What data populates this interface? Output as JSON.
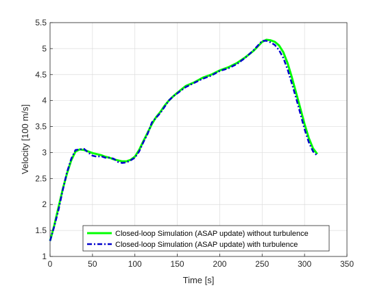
{
  "chart_data": {
    "type": "line",
    "xlabel": "Time [s]",
    "ylabel": "Velocity [100 m/s]",
    "xlim": [
      0,
      350
    ],
    "ylim": [
      1,
      5.5
    ],
    "xticks": [
      0,
      50,
      100,
      150,
      200,
      250,
      300,
      350
    ],
    "yticks": [
      1,
      1.5,
      2,
      2.5,
      3,
      3.5,
      4,
      4.5,
      5,
      5.5
    ],
    "grid": true,
    "legend_position": "bottom-center",
    "series": [
      {
        "name": "Closed-loop Simulation (ASAP update) without turbulence",
        "color": "#00ff00",
        "style": "solid",
        "x": [
          0,
          5,
          10,
          15,
          20,
          25,
          30,
          35,
          40,
          45,
          50,
          55,
          60,
          65,
          70,
          75,
          80,
          85,
          90,
          95,
          100,
          105,
          110,
          115,
          120,
          125,
          130,
          135,
          140,
          145,
          150,
          160,
          170,
          180,
          190,
          200,
          210,
          220,
          230,
          240,
          250,
          255,
          260,
          265,
          270,
          275,
          280,
          285,
          290,
          295,
          300,
          305,
          310,
          315
        ],
        "y": [
          1.3,
          1.6,
          1.95,
          2.3,
          2.6,
          2.85,
          3.02,
          3.06,
          3.05,
          3.02,
          2.99,
          2.97,
          2.95,
          2.92,
          2.9,
          2.87,
          2.85,
          2.83,
          2.83,
          2.86,
          2.92,
          3.05,
          3.22,
          3.38,
          3.55,
          3.68,
          3.78,
          3.9,
          4.0,
          4.08,
          4.15,
          4.28,
          4.35,
          4.44,
          4.5,
          4.58,
          4.64,
          4.72,
          4.83,
          4.96,
          5.13,
          5.17,
          5.16,
          5.13,
          5.06,
          4.93,
          4.72,
          4.45,
          4.15,
          3.85,
          3.55,
          3.28,
          3.08,
          2.97
        ]
      },
      {
        "name": "Closed-loop Simulation (ASAP update) with turbulence",
        "color": "#0000cd",
        "style": "dashdot",
        "x": [
          0,
          5,
          10,
          15,
          20,
          25,
          30,
          35,
          40,
          45,
          50,
          55,
          60,
          65,
          70,
          75,
          80,
          85,
          90,
          95,
          100,
          105,
          110,
          115,
          120,
          125,
          130,
          135,
          140,
          145,
          150,
          160,
          170,
          180,
          190,
          200,
          210,
          220,
          230,
          240,
          250,
          255,
          260,
          265,
          270,
          275,
          280,
          285,
          290,
          295,
          300,
          305,
          310,
          315
        ],
        "y": [
          1.3,
          1.58,
          1.9,
          2.28,
          2.62,
          2.88,
          3.05,
          3.06,
          3.07,
          3.0,
          2.94,
          2.92,
          2.93,
          2.9,
          2.9,
          2.88,
          2.82,
          2.8,
          2.81,
          2.85,
          2.9,
          3.02,
          3.2,
          3.36,
          3.58,
          3.67,
          3.76,
          3.88,
          4.0,
          4.08,
          4.14,
          4.26,
          4.34,
          4.42,
          4.48,
          4.57,
          4.62,
          4.7,
          4.82,
          4.97,
          5.15,
          5.15,
          5.12,
          5.07,
          4.97,
          4.82,
          4.6,
          4.33,
          4.05,
          3.75,
          3.45,
          3.2,
          3.02,
          2.94
        ]
      }
    ]
  }
}
